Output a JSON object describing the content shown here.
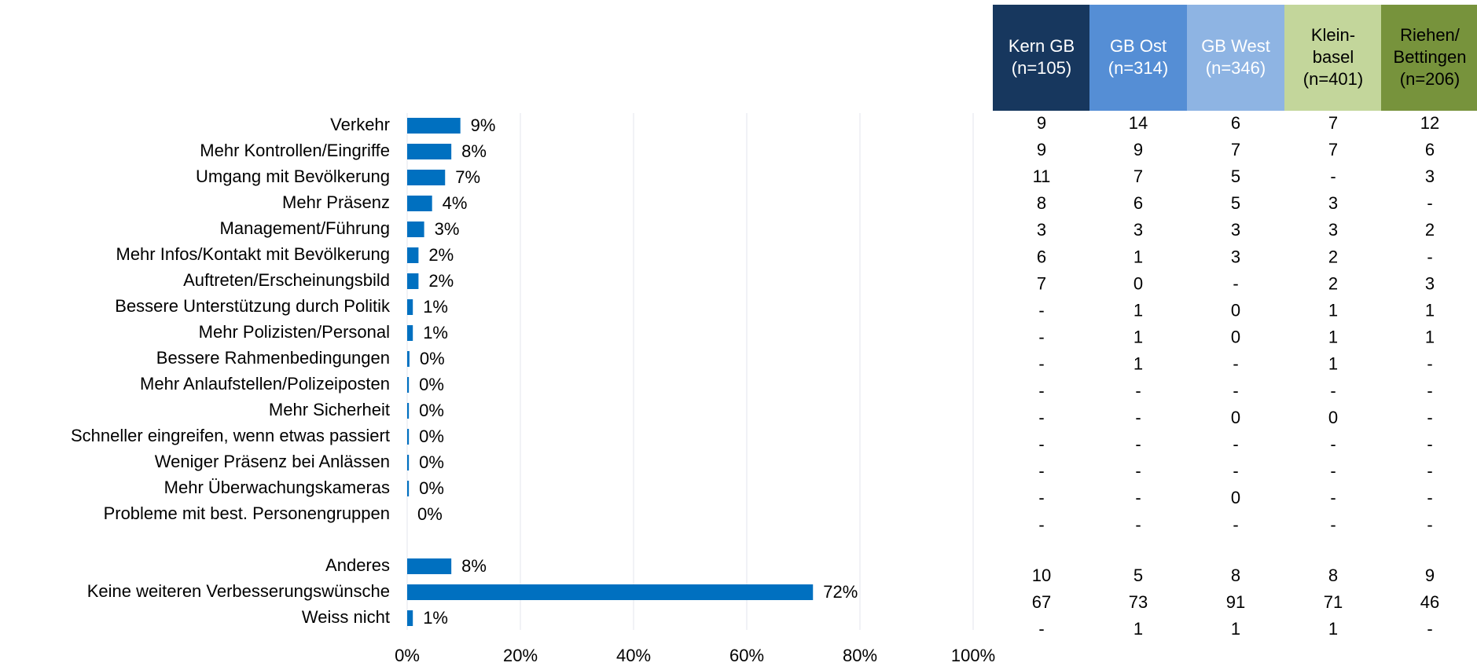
{
  "chart_data": {
    "type": "bar",
    "orientation": "horizontal",
    "color": "#0070c0",
    "categories": [
      "Verkehr",
      "Mehr Kontrollen/Eingriffe",
      "Umgang mit Bevölkerung",
      "Mehr Präsenz",
      "Management/Führung",
      "Mehr Infos/Kontakt mit Bevölkerung",
      "Auftreten/Erscheinungsbild",
      "Bessere Unterstützung durch Politik",
      "Mehr Polizisten/Personal",
      "Bessere Rahmenbedingungen",
      "Mehr Anlaufstellen/Polizeiposten",
      "Mehr Sicherheit",
      "Schneller eingreifen, wenn etwas passiert",
      "Weniger Präsenz bei Anlässen",
      "Mehr Überwachungskameras",
      "Probleme mit best. Personengruppen",
      null,
      "Anderes",
      "Keine weiteren Verbesserungswünsche",
      "Weiss nicht"
    ],
    "values": [
      9.4,
      7.8,
      6.7,
      4.4,
      3.0,
      2.0,
      2.0,
      1.0,
      1.0,
      0.4,
      0.3,
      0.3,
      0.3,
      0.3,
      0.3,
      0,
      null,
      7.8,
      71.7,
      1.0
    ],
    "value_labels": [
      "9%",
      "8%",
      "7%",
      "4%",
      "3%",
      "2%",
      "2%",
      "1%",
      "1%",
      "0%",
      "0%",
      "0%",
      "0%",
      "0%",
      "0%",
      "0%",
      null,
      "8%",
      "72%",
      "1%"
    ],
    "xlim": [
      0,
      100
    ],
    "xticks": [
      {
        "value": 0,
        "label": "0%"
      },
      {
        "value": 20,
        "label": "20%"
      },
      {
        "value": 40,
        "label": "40%"
      },
      {
        "value": 60,
        "label": "60%"
      },
      {
        "value": 80,
        "label": "80%"
      },
      {
        "value": 100,
        "label": "100%"
      }
    ],
    "grid": true
  },
  "table": {
    "columns": [
      {
        "lines": [
          "Kern GB",
          "(n=105)"
        ],
        "color": "#17375e",
        "text_color": "#ffffff"
      },
      {
        "lines": [
          "GB Ost",
          "(n=314)"
        ],
        "color": "#558ed5",
        "text_color": "#ffffff"
      },
      {
        "lines": [
          "GB West",
          "(n=346)"
        ],
        "color": "#8eb4e3",
        "text_color": "#ffffff"
      },
      {
        "lines": [
          "Klein-",
          "basel",
          "(n=401)"
        ],
        "color": "#c3d69b",
        "text_color": "#000000"
      },
      {
        "lines": [
          "Riehen/",
          "Bettingen",
          "(n=206)"
        ],
        "color": "#77933c",
        "text_color": "#000000"
      }
    ],
    "rows": [
      [
        9,
        14,
        6,
        7,
        12
      ],
      [
        9,
        9,
        7,
        7,
        6
      ],
      [
        11,
        7,
        5,
        "-",
        3
      ],
      [
        8,
        6,
        5,
        3,
        "-"
      ],
      [
        3,
        3,
        3,
        3,
        2
      ],
      [
        6,
        1,
        3,
        2,
        "-"
      ],
      [
        7,
        0,
        "-",
        2,
        3
      ],
      [
        "-",
        1,
        0,
        1,
        1
      ],
      [
        "-",
        1,
        0,
        1,
        1
      ],
      [
        "-",
        1,
        "-",
        1,
        "-"
      ],
      [
        "-",
        "-",
        "-",
        "-",
        "-"
      ],
      [
        "-",
        "-",
        0,
        0,
        "-"
      ],
      [
        "-",
        "-",
        "-",
        "-",
        "-"
      ],
      [
        "-",
        "-",
        "-",
        "-",
        "-"
      ],
      [
        "-",
        "-",
        0,
        "-",
        "-"
      ],
      [
        "-",
        "-",
        "-",
        "-",
        "-"
      ],
      [
        10,
        5,
        8,
        8,
        9
      ],
      [
        67,
        73,
        91,
        71,
        46
      ],
      [
        "-",
        1,
        1,
        1,
        "-"
      ]
    ]
  }
}
